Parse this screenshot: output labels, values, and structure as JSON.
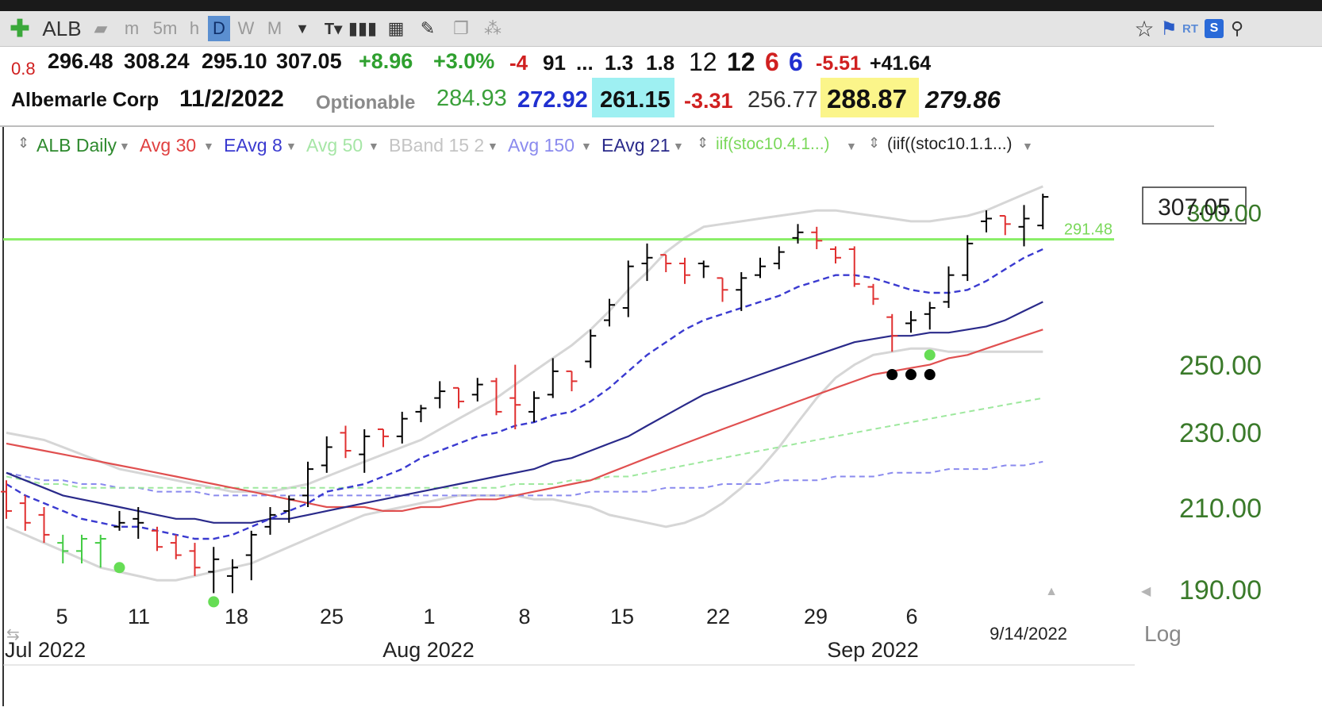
{
  "toolbar": {
    "symbol": "ALB",
    "intervals": [
      "m",
      "5m",
      "h",
      "D",
      "W",
      "M"
    ],
    "selected_interval": "D",
    "right_badges": [
      "RT",
      "S"
    ]
  },
  "quote": {
    "change_small": "0.8",
    "open": "296.48",
    "high": "308.24",
    "low": "295.10",
    "close": "307.05",
    "change": "+8.96",
    "change_pct": "+3.0%",
    "v1": "-4",
    "v2": "91",
    "v3": "...",
    "v4": "1.3",
    "v5": "1.8",
    "v6": "12",
    "v7": "12",
    "v8": "6",
    "v9": "6",
    "v10": "-5.51",
    "v11": "+41.64",
    "company": "Albemarle Corp",
    "date": "11/2/2022",
    "optionable": "Optionable",
    "p1": "284.93",
    "p2": "272.92",
    "p3": "261.15",
    "p4": "-3.31",
    "p5": "256.77",
    "p6": "288.87",
    "p7": "279.86"
  },
  "legend": {
    "main": "ALB Daily",
    "avg30": "Avg 30",
    "eavg8": "EAvg 8",
    "avg50": "Avg 50",
    "bband": "BBand 15 2",
    "avg150": "Avg 150",
    "eavg21": "EAvg 21",
    "stoc1": "iif(stoc10.4.1...)",
    "stoc2": "(iif((stoc10.1.1...)"
  },
  "colors": {
    "up_bar": "#000000",
    "down_bar": "#e03030",
    "green_bar": "#44cc44",
    "avg30": "#e05050",
    "eavg8": "#3a3ad0",
    "eavg21": "#2a2a8a",
    "avg50": "#9ee89e",
    "avg150": "#8a8aee",
    "bband": "#d6d6d6",
    "hline": "#88ee66",
    "price_axis": "#3a7a2a"
  },
  "chart_data": {
    "type": "ohlc",
    "scale": "log",
    "last_price_label": "307.05",
    "hline_label": "291.48",
    "hline_value": 291.48,
    "y_ticks": [
      "300.00",
      "250.00",
      "230.00",
      "210.00",
      "190.00"
    ],
    "y_tick_values": [
      300,
      250,
      230,
      210,
      190
    ],
    "x_ticks": [
      "5",
      "11",
      "18",
      "25",
      "1",
      "8",
      "15",
      "22",
      "29",
      "6"
    ],
    "month_labels": [
      "Jul 2022",
      "Aug 2022",
      "Sep 2022"
    ],
    "cursor_date": "9/14/2022",
    "log_label": "Log",
    "bars": [
      {
        "o": 214,
        "h": 217,
        "l": 207,
        "c": 209,
        "color": "down"
      },
      {
        "o": 211,
        "h": 213,
        "l": 204,
        "c": 206,
        "color": "down"
      },
      {
        "o": 208,
        "h": 210,
        "l": 201,
        "c": 203,
        "color": "down"
      },
      {
        "o": 201,
        "h": 203,
        "l": 196,
        "c": 199,
        "color": "green"
      },
      {
        "o": 199,
        "h": 203,
        "l": 196,
        "c": 202,
        "color": "green"
      },
      {
        "o": 201,
        "h": 203,
        "l": 195,
        "c": 202,
        "color": "green"
      },
      {
        "o": 205,
        "h": 209,
        "l": 204,
        "c": 206,
        "color": "up"
      },
      {
        "o": 207,
        "h": 210,
        "l": 202,
        "c": 206,
        "color": "up"
      },
      {
        "o": 204,
        "h": 205,
        "l": 199,
        "c": 200,
        "color": "down"
      },
      {
        "o": 201,
        "h": 203,
        "l": 197,
        "c": 198,
        "color": "down"
      },
      {
        "o": 199,
        "h": 201,
        "l": 193,
        "c": 195,
        "color": "down"
      },
      {
        "o": 194,
        "h": 200,
        "l": 189,
        "c": 197,
        "color": "up"
      },
      {
        "o": 193,
        "h": 197,
        "l": 189,
        "c": 195,
        "color": "up"
      },
      {
        "o": 198,
        "h": 204,
        "l": 192,
        "c": 203,
        "color": "up"
      },
      {
        "o": 205,
        "h": 210,
        "l": 203,
        "c": 208,
        "color": "up"
      },
      {
        "o": 209,
        "h": 213,
        "l": 206,
        "c": 212,
        "color": "up"
      },
      {
        "o": 213,
        "h": 222,
        "l": 210,
        "c": 220,
        "color": "up"
      },
      {
        "o": 221,
        "h": 229,
        "l": 219,
        "c": 226,
        "color": "up"
      },
      {
        "o": 230,
        "h": 232,
        "l": 223,
        "c": 225,
        "color": "down"
      },
      {
        "o": 224,
        "h": 231,
        "l": 219,
        "c": 229,
        "color": "up"
      },
      {
        "o": 231,
        "h": 231,
        "l": 226,
        "c": 229,
        "color": "down"
      },
      {
        "o": 229,
        "h": 236,
        "l": 227,
        "c": 234,
        "color": "up"
      },
      {
        "o": 236,
        "h": 238,
        "l": 233,
        "c": 237,
        "color": "up"
      },
      {
        "o": 240,
        "h": 245,
        "l": 237,
        "c": 242,
        "color": "up"
      },
      {
        "o": 243,
        "h": 243,
        "l": 237,
        "c": 239,
        "color": "down"
      },
      {
        "o": 241,
        "h": 246,
        "l": 239,
        "c": 244,
        "color": "up"
      },
      {
        "o": 245,
        "h": 246,
        "l": 235,
        "c": 236,
        "color": "down"
      },
      {
        "o": 240,
        "h": 250,
        "l": 231,
        "c": 238,
        "color": "down"
      },
      {
        "o": 236,
        "h": 242,
        "l": 233,
        "c": 240,
        "color": "up"
      },
      {
        "o": 241,
        "h": 252,
        "l": 240,
        "c": 248,
        "color": "up"
      },
      {
        "o": 248,
        "h": 248,
        "l": 242,
        "c": 245,
        "color": "down"
      },
      {
        "o": 251,
        "h": 261,
        "l": 249,
        "c": 259,
        "color": "up"
      },
      {
        "o": 264,
        "h": 271,
        "l": 262,
        "c": 269,
        "color": "up"
      },
      {
        "o": 268,
        "h": 284,
        "l": 265,
        "c": 282,
        "color": "up"
      },
      {
        "o": 283,
        "h": 290,
        "l": 277,
        "c": 285,
        "color": "up"
      },
      {
        "o": 286,
        "h": 286,
        "l": 280,
        "c": 283,
        "color": "down"
      },
      {
        "o": 283,
        "h": 285,
        "l": 276,
        "c": 279,
        "color": "down"
      },
      {
        "o": 283,
        "h": 284,
        "l": 278,
        "c": 282,
        "color": "up"
      },
      {
        "o": 278,
        "h": 278,
        "l": 270,
        "c": 274,
        "color": "down"
      },
      {
        "o": 274,
        "h": 280,
        "l": 267,
        "c": 278,
        "color": "up"
      },
      {
        "o": 279,
        "h": 285,
        "l": 278,
        "c": 282,
        "color": "up"
      },
      {
        "o": 283,
        "h": 289,
        "l": 281,
        "c": 287,
        "color": "up"
      },
      {
        "o": 292,
        "h": 297,
        "l": 290,
        "c": 294,
        "color": "up"
      },
      {
        "o": 294,
        "h": 296,
        "l": 288,
        "c": 291,
        "color": "down"
      },
      {
        "o": 288,
        "h": 289,
        "l": 283,
        "c": 285,
        "color": "down"
      },
      {
        "o": 288,
        "h": 289,
        "l": 275,
        "c": 276,
        "color": "down"
      },
      {
        "o": 275,
        "h": 276,
        "l": 269,
        "c": 271,
        "color": "down"
      },
      {
        "o": 265,
        "h": 266,
        "l": 254,
        "c": 259,
        "color": "down"
      },
      {
        "o": 263,
        "h": 267,
        "l": 260,
        "c": 264,
        "color": "up"
      },
      {
        "o": 266,
        "h": 270,
        "l": 261,
        "c": 268,
        "color": "up"
      },
      {
        "o": 270,
        "h": 282,
        "l": 268,
        "c": 279,
        "color": "up"
      },
      {
        "o": 279,
        "h": 293,
        "l": 277,
        "c": 290,
        "color": "up"
      },
      {
        "o": 298,
        "h": 302,
        "l": 294,
        "c": 299,
        "color": "up"
      },
      {
        "o": 300,
        "h": 300,
        "l": 293,
        "c": 297,
        "color": "down"
      },
      {
        "o": 296,
        "h": 304,
        "l": 289,
        "c": 299,
        "color": "up"
      },
      {
        "o": 296.48,
        "h": 308.24,
        "l": 295.1,
        "c": 307.05,
        "color": "up"
      }
    ],
    "series": [
      {
        "key": "eavg8",
        "values": [
          216,
          213,
          211,
          209,
          207,
          206,
          205,
          205,
          204,
          203,
          202,
          202,
          203,
          205,
          207,
          209,
          211,
          214,
          215,
          216,
          218,
          220,
          223,
          225,
          227,
          229,
          230,
          232,
          233,
          235,
          236,
          239,
          243,
          248,
          253,
          257,
          261,
          264,
          266,
          268,
          270,
          272,
          275,
          277,
          279,
          279,
          278,
          276,
          274,
          273,
          273,
          274,
          277,
          281,
          285,
          288
        ]
      },
      {
        "key": "eavg21",
        "values": [
          219,
          217,
          215,
          213,
          212,
          211,
          210,
          209,
          208,
          207,
          207,
          206,
          206,
          206,
          207,
          207,
          208,
          209,
          210,
          211,
          212,
          213,
          214,
          215,
          216,
          217,
          218,
          219,
          220,
          222,
          223,
          225,
          227,
          229,
          232,
          235,
          238,
          241,
          243,
          245,
          247,
          249,
          251,
          253,
          255,
          257,
          258,
          259,
          259,
          260,
          260,
          261,
          262,
          264,
          267,
          270
        ]
      },
      {
        "key": "avg30",
        "values": [
          227,
          226,
          225,
          224,
          223,
          222,
          221,
          220,
          219,
          218,
          217,
          216,
          215,
          214,
          213,
          212,
          211,
          210,
          210,
          210,
          209,
          209,
          210,
          210,
          211,
          212,
          212,
          213,
          214,
          215,
          216,
          217,
          219,
          221,
          223,
          225,
          227,
          229,
          231,
          233,
          235,
          237,
          239,
          241,
          243,
          245,
          247,
          248,
          249,
          250,
          252,
          253,
          255,
          257,
          259,
          261
        ]
      },
      {
        "key": "avg50",
        "values": [
          218,
          217,
          216,
          216,
          215,
          215,
          215,
          215,
          215,
          215,
          215,
          215,
          215,
          215,
          215,
          215,
          215,
          215,
          215,
          215,
          215,
          215,
          215,
          215,
          215,
          215,
          215,
          216,
          216,
          216,
          217,
          217,
          218,
          218,
          219,
          220,
          221,
          222,
          223,
          224,
          225,
          226,
          227,
          228,
          229,
          230,
          231,
          232,
          233,
          234,
          235,
          236,
          237,
          238,
          239,
          240
        ]
      },
      {
        "key": "avg150",
        "values": [
          219,
          218,
          217,
          217,
          216,
          216,
          215,
          215,
          214,
          214,
          214,
          213,
          213,
          213,
          213,
          213,
          213,
          213,
          213,
          213,
          213,
          213,
          213,
          213,
          213,
          213,
          213,
          213,
          213,
          213,
          213,
          214,
          214,
          214,
          214,
          215,
          215,
          215,
          216,
          216,
          216,
          217,
          217,
          217,
          218,
          218,
          218,
          219,
          219,
          219,
          220,
          220,
          220,
          221,
          221,
          222
        ]
      },
      {
        "key": "bb_upper",
        "values": [
          230,
          229,
          228,
          226,
          224,
          222,
          220,
          219,
          218,
          217,
          216,
          215,
          214,
          214,
          214,
          215,
          216,
          218,
          220,
          222,
          224,
          226,
          228,
          231,
          234,
          237,
          240,
          244,
          248,
          252,
          256,
          261,
          267,
          274,
          280,
          287,
          292,
          296,
          297,
          298,
          299,
          300,
          301,
          302,
          302,
          301,
          300,
          299,
          298,
          298,
          299,
          300,
          302,
          305,
          308,
          311
        ]
      },
      {
        "key": "bb_lower",
        "values": [
          205,
          203,
          201,
          199,
          197,
          195,
          194,
          193,
          192,
          192,
          193,
          194,
          195,
          196,
          198,
          200,
          202,
          204,
          206,
          208,
          209,
          210,
          211,
          212,
          213,
          213,
          213,
          213,
          212,
          212,
          211,
          210,
          208,
          207,
          206,
          205,
          206,
          208,
          211,
          215,
          220,
          226,
          233,
          240,
          246,
          250,
          253,
          254,
          255,
          255,
          254,
          254,
          254,
          254,
          254,
          254
        ]
      }
    ],
    "signal_dots": [
      {
        "bar": 6,
        "price": 195,
        "color": "#66dd55"
      },
      {
        "bar": 11,
        "price": 187,
        "color": "#66dd55"
      },
      {
        "bar": 49,
        "price": 253,
        "color": "#66dd55"
      },
      {
        "bar": 47,
        "price": 247,
        "color": "#000000"
      },
      {
        "bar": 48,
        "price": 247,
        "color": "#000000"
      },
      {
        "bar": 49,
        "price": 247,
        "color": "#000000"
      }
    ]
  }
}
